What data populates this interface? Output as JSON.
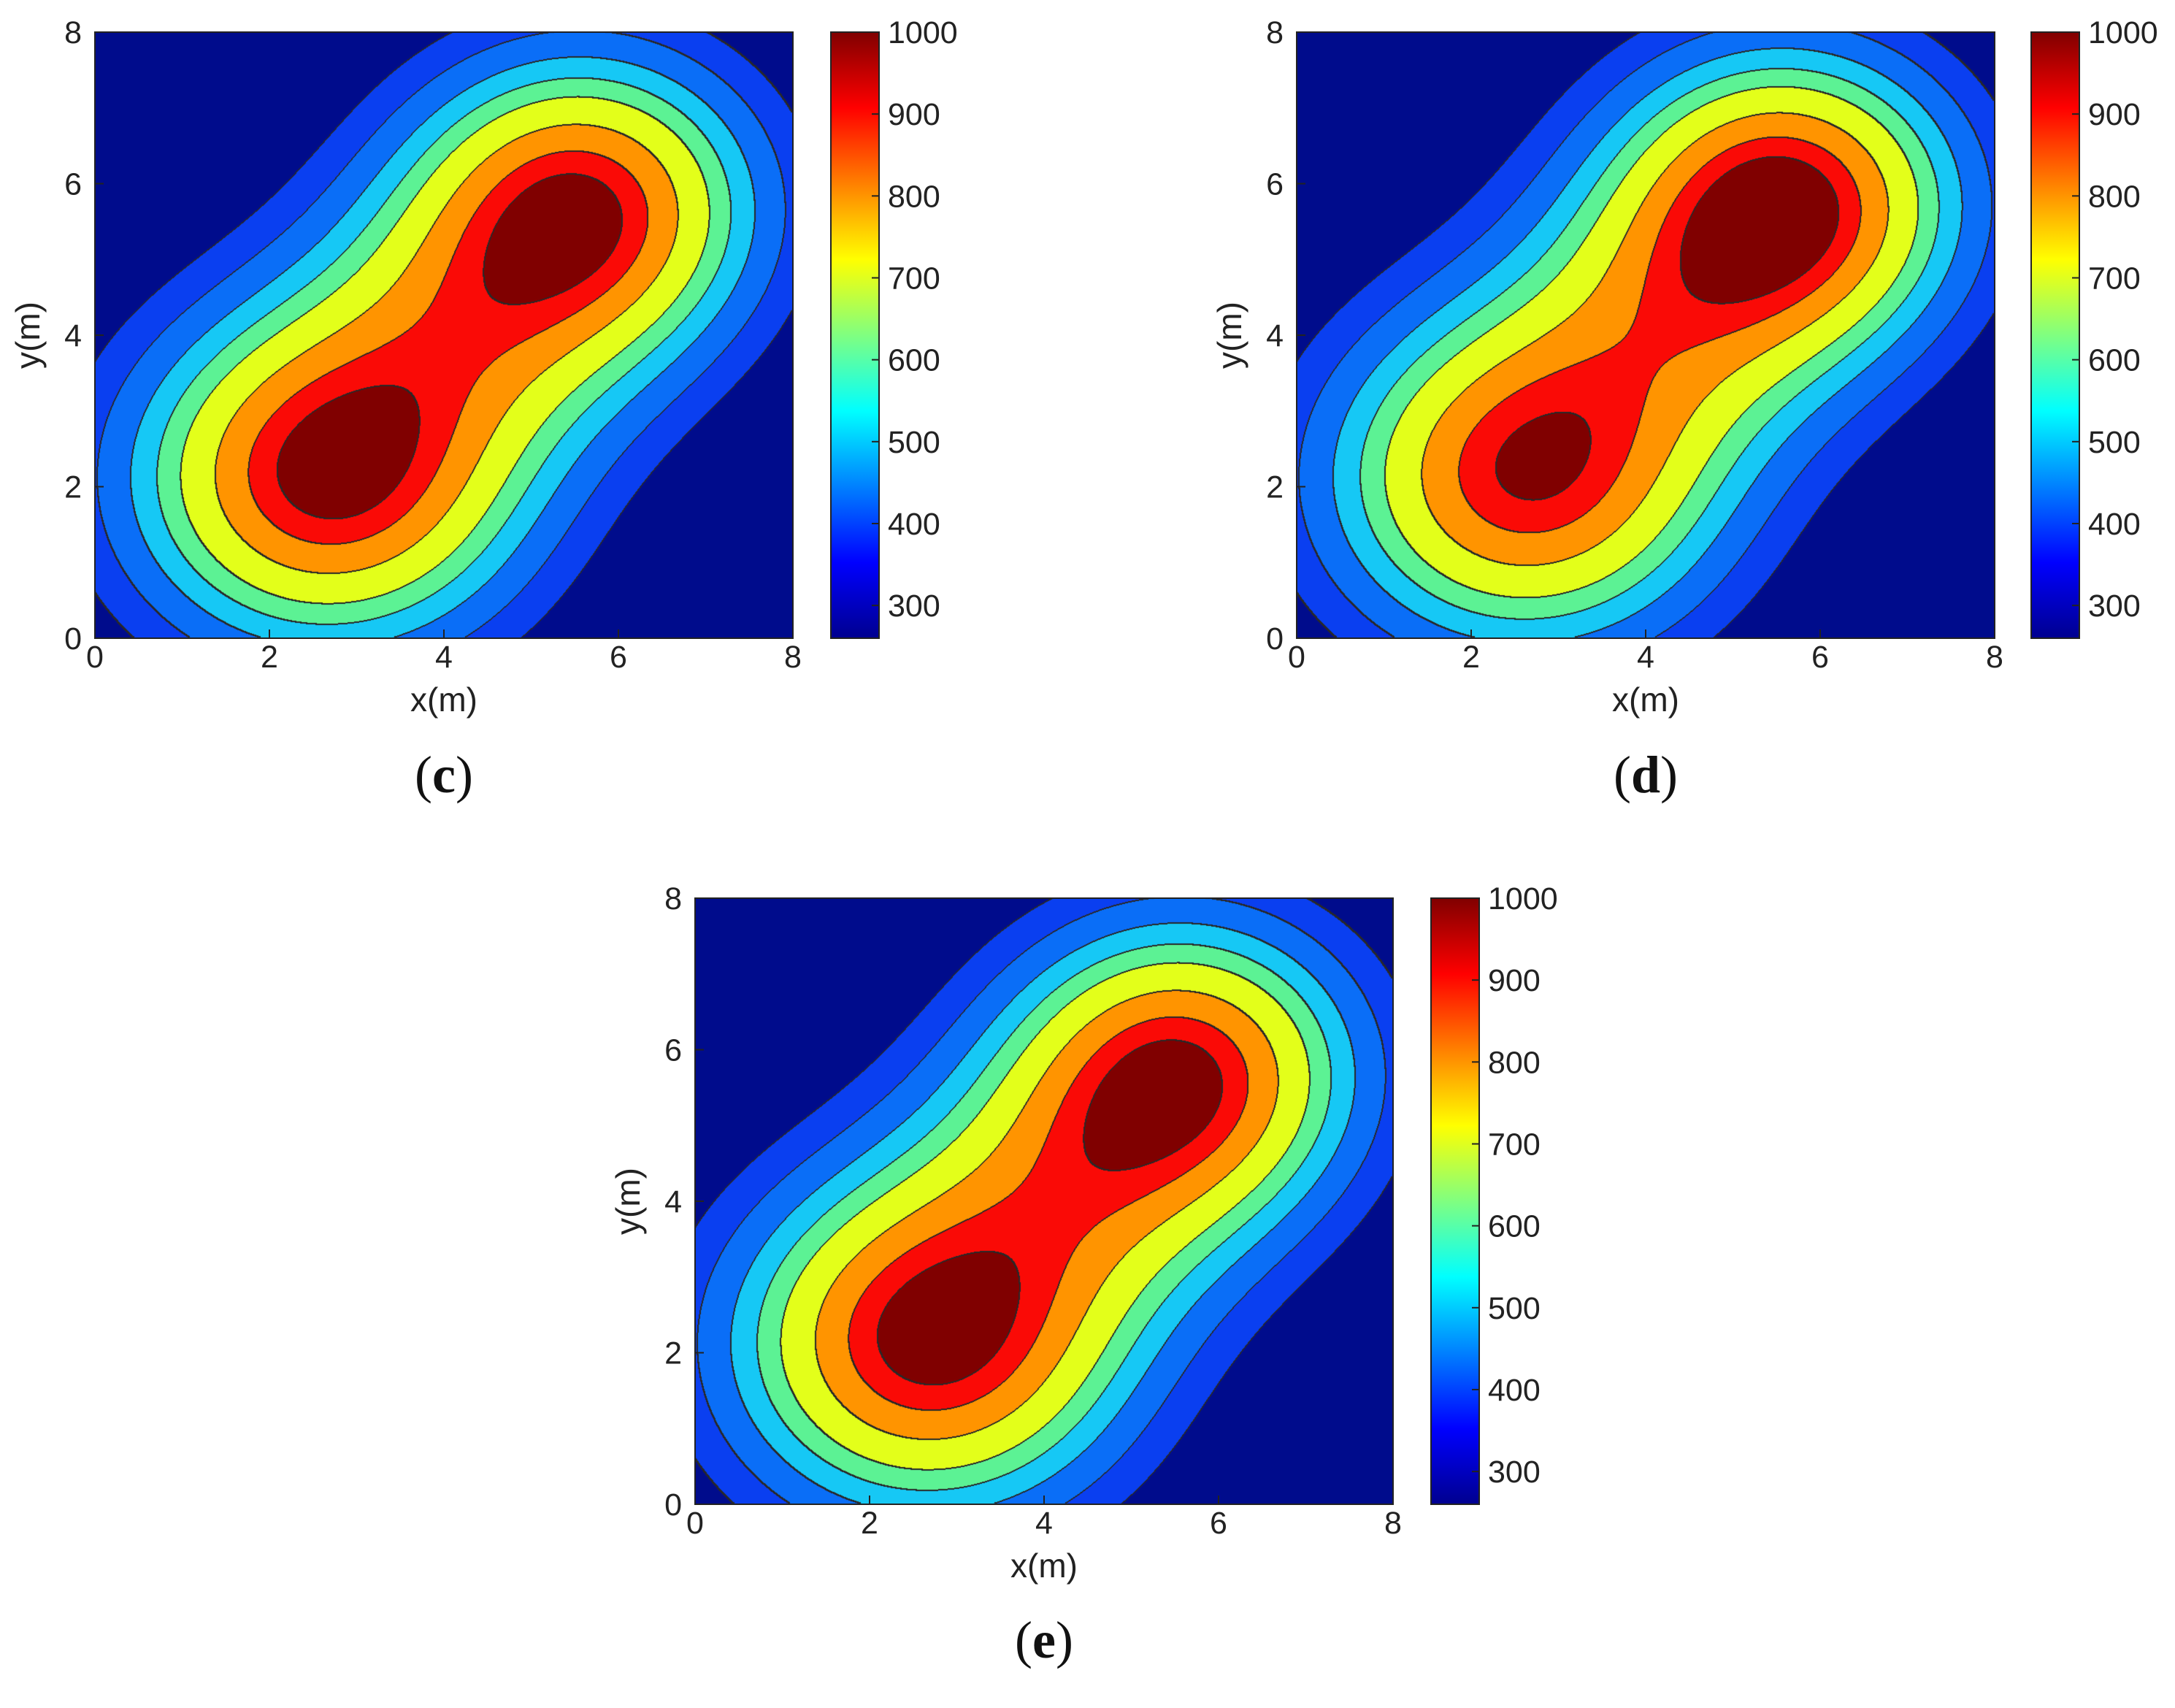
{
  "colormap": [
    "#00008f",
    "#0000ff",
    "#0080ff",
    "#00ffff",
    "#80ff80",
    "#ffff00",
    "#ff8000",
    "#ff0000",
    "#800000"
  ],
  "contour_fills": [
    "#000c8c",
    "#0a3ff0",
    "#0a6ef7",
    "#16c8f5",
    "#5cf294",
    "#e3ff1a",
    "#ff9400",
    "#fa0a06",
    "#800000"
  ],
  "chart_data": [
    {
      "type": "contour",
      "panel_label": "c",
      "xlabel": "x(m)",
      "ylabel": "y(m)",
      "xlim": [
        0,
        8
      ],
      "ylim": [
        0,
        8
      ],
      "xticks": [
        "0",
        "2",
        "4",
        "6",
        "8"
      ],
      "yticks": [
        "0",
        "2",
        "4",
        "6",
        "8"
      ],
      "colorbar": {
        "range": [
          260,
          1000
        ],
        "ticks": [
          "300",
          "400",
          "500",
          "600",
          "700",
          "800",
          "900",
          "1000"
        ]
      },
      "levels": [
        250,
        330,
        440,
        550,
        640,
        720,
        830,
        920,
        980
      ],
      "sources": [
        {
          "x": 2.65,
          "y": 2.1,
          "peak": 990,
          "sx": 2.05,
          "sy": 2.05
        },
        {
          "x": 5.6,
          "y": 5.7,
          "peak": 950,
          "sx": 1.85,
          "sy": 1.85
        }
      ]
    },
    {
      "type": "contour",
      "panel_label": "d",
      "xlabel": "x(m)",
      "ylabel": "y(m)",
      "xlim": [
        0,
        8
      ],
      "ylim": [
        0,
        8
      ],
      "xticks": [
        "0",
        "2",
        "4",
        "6",
        "8"
      ],
      "yticks": [
        "0",
        "2",
        "4",
        "6",
        "8"
      ],
      "colorbar": {
        "range": [
          260,
          1000
        ],
        "ticks": [
          "300",
          "400",
          "500",
          "600",
          "700",
          "800",
          "900",
          "1000"
        ]
      },
      "levels": [
        250,
        330,
        440,
        550,
        640,
        720,
        830,
        920,
        980
      ],
      "sources": [
        {
          "x": 2.6,
          "y": 2.1,
          "peak": 960,
          "sx": 2.05,
          "sy": 2.05
        },
        {
          "x": 5.6,
          "y": 5.75,
          "peak": 990,
          "sx": 1.85,
          "sy": 1.85
        }
      ]
    },
    {
      "type": "contour",
      "panel_label": "e",
      "xlabel": "x(m)",
      "ylabel": "y(m)",
      "xlim": [
        0,
        8
      ],
      "ylim": [
        0,
        8
      ],
      "xticks": [
        "0",
        "2",
        "4",
        "6",
        "8"
      ],
      "yticks": [
        "0",
        "2",
        "4",
        "6",
        "8"
      ],
      "colorbar": {
        "range": [
          260,
          1000
        ],
        "ticks": [
          "300",
          "400",
          "500",
          "600",
          "700",
          "800",
          "900",
          "1000"
        ]
      },
      "levels": [
        250,
        330,
        440,
        550,
        640,
        720,
        830,
        920,
        980
      ],
      "sources": [
        {
          "x": 2.65,
          "y": 2.1,
          "peak": 990,
          "sx": 2.05,
          "sy": 2.05
        },
        {
          "x": 5.6,
          "y": 5.7,
          "peak": 950,
          "sx": 1.85,
          "sy": 1.85
        }
      ]
    }
  ]
}
